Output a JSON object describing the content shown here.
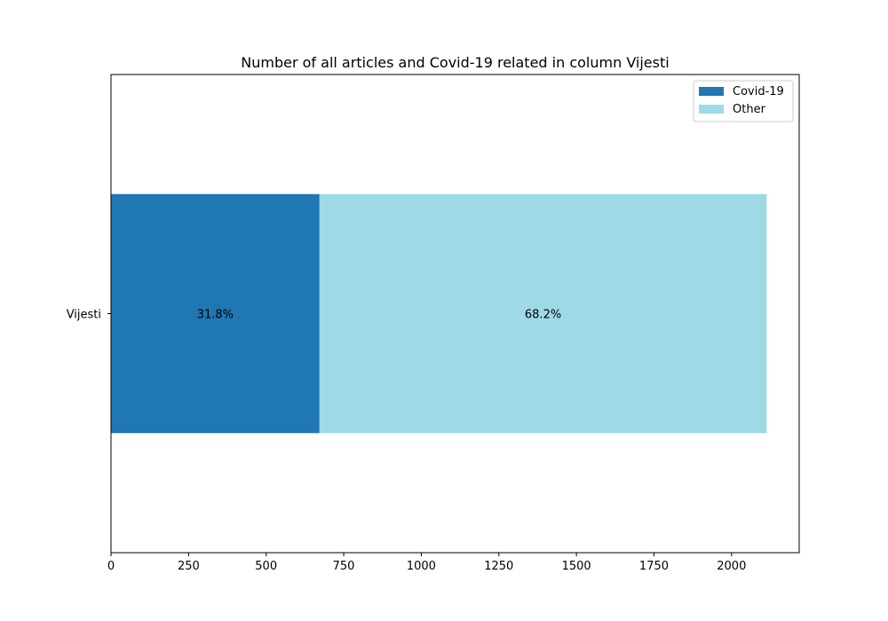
{
  "chart_data": {
    "type": "bar",
    "orientation": "horizontal",
    "stacked": true,
    "title": "Number of all articles and Covid-19 related in column Vijesti",
    "xlabel": "",
    "ylabel": "",
    "categories": [
      "Vijesti"
    ],
    "series": [
      {
        "name": "Covid-19",
        "values": [
          672
        ],
        "label": "31.8%",
        "color": "#1f77b4"
      },
      {
        "name": "Other",
        "values": [
          1441
        ],
        "label": "68.2%",
        "color": "#9edae5"
      }
    ],
    "xlim": [
      0,
      2218
    ],
    "xticks": [
      {
        "value": 0,
        "label": "0"
      },
      {
        "value": 250,
        "label": "250"
      },
      {
        "value": 500,
        "label": "500"
      },
      {
        "value": 750,
        "label": "750"
      },
      {
        "value": 1000,
        "label": "1000"
      },
      {
        "value": 1250,
        "label": "1250"
      },
      {
        "value": 1500,
        "label": "1500"
      },
      {
        "value": 1750,
        "label": "1750"
      },
      {
        "value": 2000,
        "label": "2000"
      }
    ],
    "grid": false,
    "legend_position": "top-right"
  }
}
